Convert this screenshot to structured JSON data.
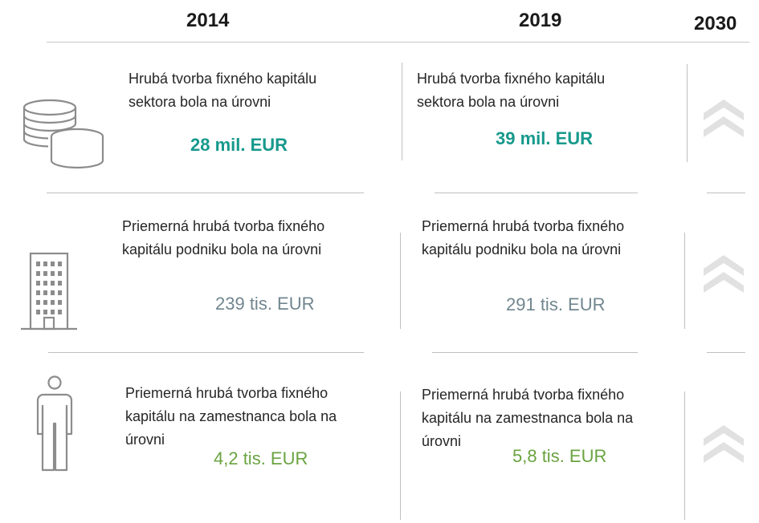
{
  "years": {
    "y2014": "2014",
    "y2019": "2019",
    "y2030": "2030"
  },
  "rows": [
    {
      "icon": "coins-icon",
      "desc_2014": [
        "Hrubá tvorba fixného kapitálu",
        "sektora bola na úrovni"
      ],
      "value_2014": "28 mil. EUR",
      "desc_2019": [
        "Hrubá tvorba fixného kapitálu",
        "sektora bola na úrovni"
      ],
      "value_2019": "39 mil. EUR",
      "value_color": "#17998c"
    },
    {
      "icon": "building-icon",
      "desc_2014": [
        "Priemerná hrubá tvorba fixného",
        "kapitálu podniku bola na úrovni"
      ],
      "value_2014": "239 tis. EUR",
      "desc_2019": [
        "Priemerná hrubá tvorba fixného",
        "kapitálu podniku bola na úrovni"
      ],
      "value_2019": "291 tis. EUR",
      "value_color": "#71868f"
    },
    {
      "icon": "person-icon",
      "desc_2014": [
        "Priemerná hrubá tvorba fixného",
        "kapitálu na zamestnanca bola na",
        "úrovni"
      ],
      "value_2014": "4,2 tis. EUR",
      "desc_2019": [
        "Priemerná hrubá tvorba fixného",
        "kapitálu na zamestnanca bola na",
        "úrovni"
      ],
      "value_2019": "5,8 tis. EUR",
      "value_color": "#6aa341"
    }
  ],
  "trend_icon": "double-chevron-up-icon"
}
